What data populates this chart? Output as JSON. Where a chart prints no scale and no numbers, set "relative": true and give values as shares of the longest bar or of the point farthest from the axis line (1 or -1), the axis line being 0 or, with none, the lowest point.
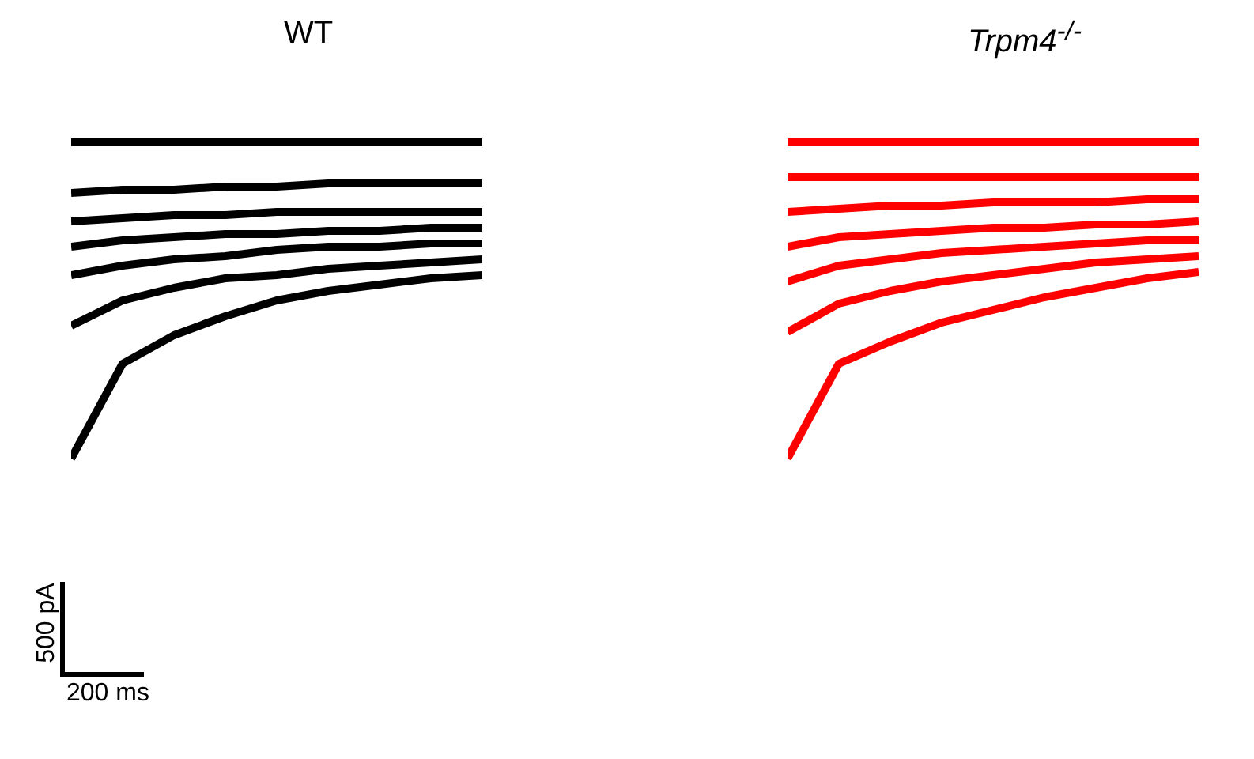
{
  "chart_data": [
    {
      "type": "line",
      "title": "WT",
      "relative": true,
      "categories": [
        null,
        null,
        null,
        null,
        null,
        null,
        null,
        null,
        null
      ],
      "annotations": [
        "500 pA",
        "200 ms"
      ],
      "series": [
        {
          "color": "#000000",
          "values": [
            0,
            0.3,
            0.39,
            0.45,
            0.5,
            0.53,
            0.55,
            0.57,
            0.58
          ]
        },
        {
          "color": "#000000",
          "values": [
            0.42,
            0.5,
            0.54,
            0.57,
            0.58,
            0.6,
            0.61,
            0.62,
            0.63
          ]
        },
        {
          "color": "#000000",
          "values": [
            0.58,
            0.61,
            0.63,
            0.64,
            0.66,
            0.67,
            0.67,
            0.68,
            0.68
          ]
        },
        {
          "color": "#000000",
          "values": [
            0.67,
            0.69,
            0.7,
            0.71,
            0.71,
            0.72,
            0.72,
            0.73,
            0.73
          ]
        },
        {
          "color": "#000000",
          "values": [
            0.75,
            0.76,
            0.77,
            0.77,
            0.78,
            0.78,
            0.78,
            0.78,
            0.78
          ]
        },
        {
          "color": "#000000",
          "values": [
            0.84,
            0.85,
            0.85,
            0.86,
            0.86,
            0.87,
            0.87,
            0.87,
            0.87
          ]
        },
        {
          "color": "#000000",
          "values": [
            1,
            1,
            1,
            1,
            1,
            1,
            1,
            1,
            1
          ]
        }
      ]
    },
    {
      "type": "line",
      "title": "Trpm4$^{-/-}$",
      "relative": true,
      "categories": [
        null,
        null,
        null,
        null,
        null,
        null,
        null,
        null,
        null
      ],
      "series": [
        {
          "color": "#ff0000",
          "values": [
            0,
            0.3,
            0.37,
            0.43,
            0.47,
            0.51,
            0.54,
            0.57,
            0.59
          ]
        },
        {
          "color": "#ff0000",
          "values": [
            0.4,
            0.49,
            0.53,
            0.56,
            0.58,
            0.6,
            0.62,
            0.63,
            0.64
          ]
        },
        {
          "color": "#ff0000",
          "values": [
            0.56,
            0.61,
            0.63,
            0.65,
            0.66,
            0.67,
            0.68,
            0.69,
            0.69
          ]
        },
        {
          "color": "#ff0000",
          "values": [
            0.67,
            0.7,
            0.71,
            0.72,
            0.73,
            0.73,
            0.74,
            0.74,
            0.75
          ]
        },
        {
          "color": "#ff0000",
          "values": [
            0.78,
            0.79,
            0.8,
            0.8,
            0.81,
            0.81,
            0.81,
            0.82,
            0.82
          ]
        },
        {
          "color": "#ff0000",
          "values": [
            0.89,
            0.89,
            0.89,
            0.89,
            0.89,
            0.89,
            0.89,
            0.89,
            0.89
          ]
        },
        {
          "color": "#ff0000",
          "values": [
            1,
            1,
            1,
            1,
            1,
            1,
            1,
            1,
            1
          ]
        }
      ]
    }
  ]
}
